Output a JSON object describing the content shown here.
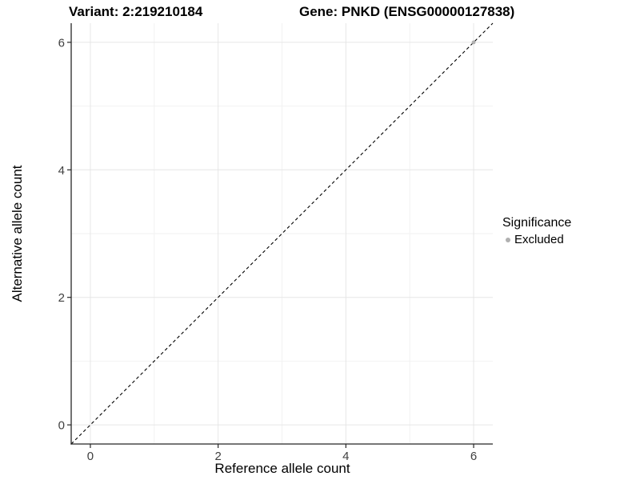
{
  "chart_data": {
    "type": "scatter",
    "title_left": "Variant: 2:219210184",
    "title_right": "Gene: PNKD (ENSG00000127838)",
    "xlabel": "Reference allele count",
    "ylabel": "Alternative allele count",
    "xlim": [
      -0.3,
      6.3
    ],
    "ylim": [
      -0.3,
      6.3
    ],
    "x_ticks": [
      0,
      2,
      4,
      6
    ],
    "y_ticks": [
      0,
      2,
      4,
      6
    ],
    "x_minor_ticks": [
      1,
      3,
      5
    ],
    "y_minor_ticks": [
      1,
      3,
      5
    ],
    "grid": {
      "major_color": "#e6e6e6",
      "minor_color": "#f2f2f2",
      "background": "#ffffff"
    },
    "axis_line_color": "#262626",
    "tick_label_color": "#404040",
    "reference_line": {
      "style": "dashed",
      "color": "#000000",
      "from": [
        -0.3,
        -0.3
      ],
      "to": [
        6.3,
        6.3
      ]
    },
    "series": [
      {
        "name": "Excluded",
        "color": "#b0b0b0",
        "points": [
          [
            6,
            6
          ]
        ]
      }
    ],
    "legend": {
      "title": "Significance",
      "position": "right",
      "items": [
        {
          "label": "Excluded",
          "color": "#b0b0b0"
        }
      ]
    }
  }
}
